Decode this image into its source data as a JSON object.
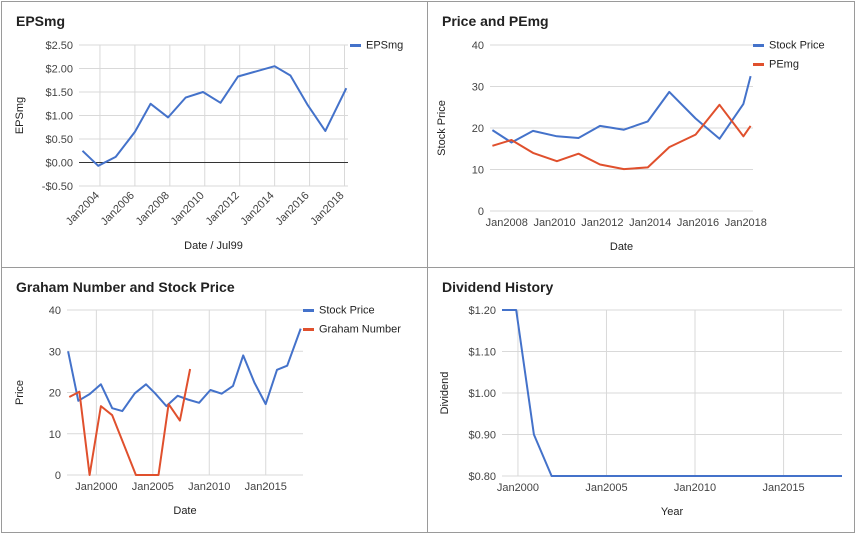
{
  "colors": {
    "blue": "#4472ca",
    "red": "#e0502d",
    "grid": "#d9d9d9",
    "zero": "#333333"
  },
  "chart_data": [
    {
      "type": "line",
      "title": "EPSmg",
      "xlabel": "Date / Jul99",
      "ylabel": "EPSmg",
      "xlim": [
        2002.8,
        2018.2
      ],
      "ylim": [
        -0.5,
        2.5
      ],
      "yticks": [
        -0.5,
        0,
        0.5,
        1,
        1.5,
        2,
        2.5
      ],
      "ytick_labels": [
        "-$0.50",
        "$0.00",
        "$0.50",
        "$1.00",
        "$1.50",
        "$2.00",
        "$2.50"
      ],
      "xticks": [
        2004,
        2006,
        2008,
        2010,
        2012,
        2014,
        2016,
        2018
      ],
      "xtick_labels": [
        "Jan2004",
        "Jan2006",
        "Jan2008",
        "Jan2010",
        "Jan2012",
        "Jan2014",
        "Jan2016",
        "Jan2018"
      ],
      "vgrid": true,
      "zero_line": true,
      "legend": "top-right",
      "series": [
        {
          "name": "EPSmg",
          "color": "blue",
          "x": [
            2003.0,
            2003.9,
            2004.9,
            2006.0,
            2006.9,
            2007.9,
            2008.9,
            2009.9,
            2010.9,
            2011.9,
            2014.0,
            2014.9,
            2015.9,
            2016.9,
            2018.1
          ],
          "y": [
            0.25,
            -0.07,
            0.12,
            0.65,
            1.25,
            0.96,
            1.38,
            1.5,
            1.27,
            1.83,
            2.05,
            1.85,
            1.22,
            0.67,
            1.58
          ]
        }
      ]
    },
    {
      "type": "line",
      "title": "Price and PEmg",
      "xlabel": "Date",
      "ylabel": "Stock Price",
      "xlim": [
        2007.3,
        2018.3
      ],
      "ylim": [
        0,
        40
      ],
      "yticks": [
        0,
        10,
        20,
        30,
        40
      ],
      "ytick_labels": [
        "0",
        "10",
        "20",
        "30",
        "40"
      ],
      "xticks": [
        2008,
        2010,
        2012,
        2014,
        2016,
        2018
      ],
      "xtick_labels": [
        "Jan2008",
        "Jan2010",
        "Jan2012",
        "Jan2014",
        "Jan2016",
        "Jan2018"
      ],
      "vgrid": false,
      "legend": "top-right",
      "series": [
        {
          "name": "Stock Price",
          "color": "blue",
          "x": [
            2007.4,
            2008.2,
            2009.1,
            2010.1,
            2011.0,
            2011.9,
            2012.9,
            2013.9,
            2014.8,
            2015.9,
            2016.9,
            2017.9,
            2018.2
          ],
          "y": [
            19.5,
            16.5,
            19.3,
            18.0,
            17.6,
            20.5,
            19.6,
            21.6,
            28.7,
            22.3,
            17.4,
            25.8,
            32.5
          ]
        },
        {
          "name": "PEmg",
          "color": "red",
          "x": [
            2007.4,
            2008.2,
            2009.1,
            2010.1,
            2011.0,
            2011.9,
            2012.9,
            2013.9,
            2014.8,
            2015.9,
            2016.9,
            2017.9,
            2018.2
          ],
          "y": [
            15.7,
            17.1,
            14.0,
            12.0,
            13.8,
            11.2,
            10.1,
            10.5,
            15.4,
            18.4,
            25.6,
            18.0,
            20.5
          ]
        }
      ]
    },
    {
      "type": "line",
      "title": "Graham Number and Stock Price",
      "xlabel": "Date",
      "ylabel": "Price",
      "xlim": [
        1997.4,
        2018.3
      ],
      "ylim": [
        0,
        40
      ],
      "yticks": [
        0,
        10,
        20,
        30,
        40
      ],
      "ytick_labels": [
        "0",
        "10",
        "20",
        "30",
        "40"
      ],
      "xticks": [
        2000,
        2005,
        2010,
        2015
      ],
      "xtick_labels": [
        "Jan2000",
        "Jan2005",
        "Jan2010",
        "Jan2015"
      ],
      "vgrid": true,
      "legend": "top-right",
      "series": [
        {
          "name": "Stock Price",
          "color": "blue",
          "x": [
            1997.5,
            1998.4,
            1999.4,
            2000.4,
            2001.4,
            2002.3,
            2003.4,
            2004.4,
            2005.2,
            2006.2,
            2007.2,
            2008.1,
            2009.1,
            2010.1,
            2011.1,
            2012.1,
            2013.0,
            2014.0,
            2015.0,
            2016.0,
            2016.9,
            2018.1
          ],
          "y": [
            30.0,
            18.0,
            19.6,
            22.0,
            16.2,
            15.5,
            19.8,
            22.0,
            19.8,
            16.7,
            19.2,
            18.3,
            17.5,
            20.6,
            19.7,
            21.6,
            29.0,
            22.4,
            17.2,
            25.5,
            26.5,
            35.5
          ]
        },
        {
          "name": "Graham Number",
          "color": "red",
          "x": [
            1997.6,
            1998.5,
            1999.4,
            2000.4,
            2001.4,
            2003.5,
            2004.5,
            2005.5,
            2006.4,
            2007.4,
            2008.3
          ],
          "y": [
            18.9,
            20.2,
            0.0,
            16.7,
            14.5,
            0.0,
            0.0,
            0.0,
            17.2,
            13.2,
            25.7
          ]
        }
      ]
    },
    {
      "type": "line",
      "title": "Dividend History",
      "xlabel": "Year",
      "ylabel": "Dividend",
      "xlim": [
        1999.1,
        2018.3
      ],
      "ylim": [
        0.8,
        1.2
      ],
      "yticks": [
        0.8,
        0.9,
        1.0,
        1.1,
        1.2
      ],
      "ytick_labels": [
        "$0.80",
        "$0.90",
        "$1.00",
        "$1.10",
        "$1.20"
      ],
      "xticks": [
        2000,
        2005,
        2010,
        2015
      ],
      "xtick_labels": [
        "Jan2000",
        "Jan2005",
        "Jan2010",
        "Jan2015"
      ],
      "vgrid": true,
      "legend": "none",
      "series": [
        {
          "name": "",
          "color": "blue",
          "x": [
            1999.1,
            1999.9,
            2000.9,
            2001.9,
            2018.3
          ],
          "y": [
            1.2,
            1.2,
            0.9,
            0.8,
            0.8
          ]
        }
      ]
    }
  ]
}
